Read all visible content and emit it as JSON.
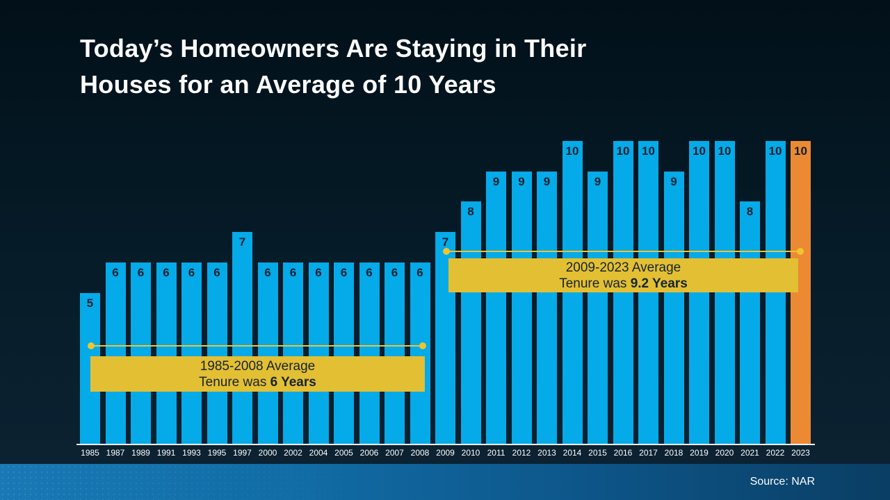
{
  "title": {
    "lines": [
      "Today’s Homeowners Are Staying in Their",
      "Houses for an Average of 10 Years"
    ]
  },
  "source": "Source: NAR",
  "colors": {
    "background_top": "#021019",
    "background_bottom": "#0c2232",
    "bar_blue": "#05AAE8",
    "bar_orange": "#EC8A33",
    "annotation_yellow": "#E3BF33",
    "annotation_line_yellow": "#EFC52F",
    "value_label": "#0D2130",
    "axis_label": "#FFFFFF",
    "baseline": "#EDF2F5",
    "title_color": "#FFFFFF",
    "footer_left": "#1879B4",
    "footer_right": "#0A3E64"
  },
  "chart_data": {
    "type": "bar",
    "title": "Today’s Homeowners Are Staying in Their Houses for an Average of 10 Years",
    "xlabel": "",
    "ylabel": "",
    "ylim": [
      0,
      10.8
    ],
    "grid": false,
    "legend": false,
    "categories": [
      "1985",
      "1987",
      "1989",
      "1991",
      "1993",
      "1995",
      "1997",
      "2000",
      "2002",
      "2004",
      "2005",
      "2006",
      "2007",
      "2008",
      "2009",
      "2010",
      "2011",
      "2012",
      "2013",
      "2014",
      "2015",
      "2016",
      "2017",
      "2018",
      "2019",
      "2020",
      "2021",
      "2022",
      "2023"
    ],
    "values": [
      5,
      6,
      6,
      6,
      6,
      6,
      7,
      6,
      6,
      6,
      6,
      6,
      6,
      6,
      7,
      8,
      9,
      9,
      9,
      10,
      9,
      10,
      10,
      9,
      10,
      10,
      8,
      10,
      10
    ],
    "highlight_category": "2023",
    "highlight_index": 28,
    "value_labels_shown": true,
    "annotations": [
      {
        "label_line1": "1985-2008 Average",
        "label_line2_prefix": "Tenure was ",
        "label_line2_bold": "6 Years",
        "start_category": "1985",
        "end_category": "2008"
      },
      {
        "label_line1": "2009-2023 Average",
        "label_line2_prefix": "Tenure was ",
        "label_line2_bold": "9.2 Years",
        "start_category": "2009",
        "end_category": "2023"
      }
    ]
  }
}
